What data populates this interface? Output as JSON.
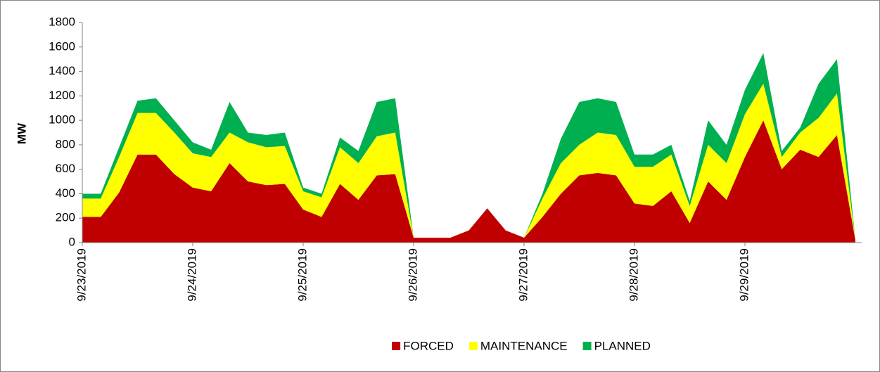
{
  "chart_data": {
    "type": "stacked-area",
    "y_label": "MW",
    "categories": [
      "9/23/2019",
      null,
      null,
      null,
      null,
      null,
      "9/24/2019",
      null,
      null,
      null,
      null,
      null,
      "9/25/2019",
      null,
      null,
      null,
      null,
      null,
      "9/26/2019",
      null,
      null,
      null,
      null,
      null,
      "9/27/2019",
      null,
      null,
      null,
      null,
      null,
      "9/28/2019",
      null,
      null,
      null,
      null,
      null,
      "9/29/2019",
      null,
      null,
      null,
      null,
      null,
      null
    ],
    "series": [
      {
        "name": "FORCED",
        "color": "#c00000",
        "values": [
          210,
          210,
          410,
          720,
          720,
          560,
          450,
          420,
          650,
          500,
          470,
          480,
          270,
          210,
          480,
          350,
          550,
          560,
          40,
          40,
          40,
          100,
          280,
          100,
          40,
          210,
          400,
          550,
          570,
          550,
          320,
          300,
          420,
          160,
          500,
          350,
          700,
          1000,
          600,
          760,
          700,
          880,
          20
        ]
      },
      {
        "name": "MAINTENANCE",
        "color": "#ffff00",
        "values": [
          150,
          150,
          290,
          340,
          340,
          340,
          280,
          280,
          250,
          320,
          310,
          310,
          150,
          160,
          300,
          300,
          320,
          340,
          0,
          0,
          0,
          0,
          0,
          0,
          0,
          150,
          250,
          250,
          330,
          330,
          300,
          320,
          300,
          140,
          300,
          300,
          350,
          300,
          100,
          140,
          320,
          340,
          0
        ]
      },
      {
        "name": "PLANNED",
        "color": "#00b050",
        "values": [
          40,
          40,
          80,
          100,
          120,
          100,
          90,
          60,
          250,
          80,
          100,
          110,
          30,
          30,
          80,
          100,
          280,
          280,
          0,
          0,
          0,
          0,
          0,
          0,
          0,
          40,
          200,
          350,
          280,
          270,
          100,
          100,
          80,
          40,
          200,
          150,
          200,
          250,
          50,
          40,
          280,
          280,
          0
        ]
      }
    ],
    "ylim": [
      0,
      1800
    ],
    "yticks": [
      0,
      200,
      400,
      600,
      800,
      1000,
      1200,
      1400,
      1600,
      1800
    ],
    "grid": false,
    "legend": "bottom"
  }
}
